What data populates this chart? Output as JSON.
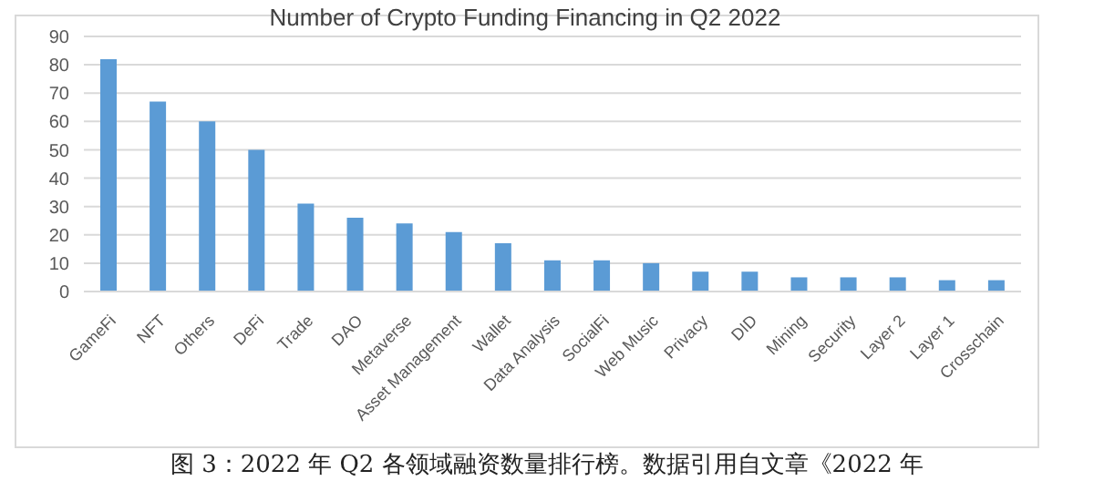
{
  "chart_data": {
    "type": "bar",
    "title": "Number of Crypto Funding Financing in Q2 2022",
    "categories": [
      "GameFi",
      "NFT",
      "Others",
      "DeFi",
      "Trade",
      "DAO",
      "Metaverse",
      "Asset Management",
      "Wallet",
      "Data Analysis",
      "SocialFi",
      "Web Music",
      "Privacy",
      "DID",
      "Mining",
      "Security",
      "Layer 2",
      "Layer 1",
      "Crosschain"
    ],
    "values": [
      82,
      67,
      60,
      50,
      31,
      26,
      24,
      21,
      17,
      11,
      11,
      10,
      7,
      7,
      5,
      5,
      5,
      4,
      4
    ],
    "color": "#5b9bd5",
    "ylim": [
      0,
      90
    ],
    "yticks": [
      0,
      10,
      20,
      30,
      40,
      50,
      60,
      70,
      80,
      90
    ],
    "grid": "y",
    "annotations": [
      "图 3：2022 年 Q2 各领域融资数量排行榜。数据引用自文章《2022 年"
    ]
  }
}
